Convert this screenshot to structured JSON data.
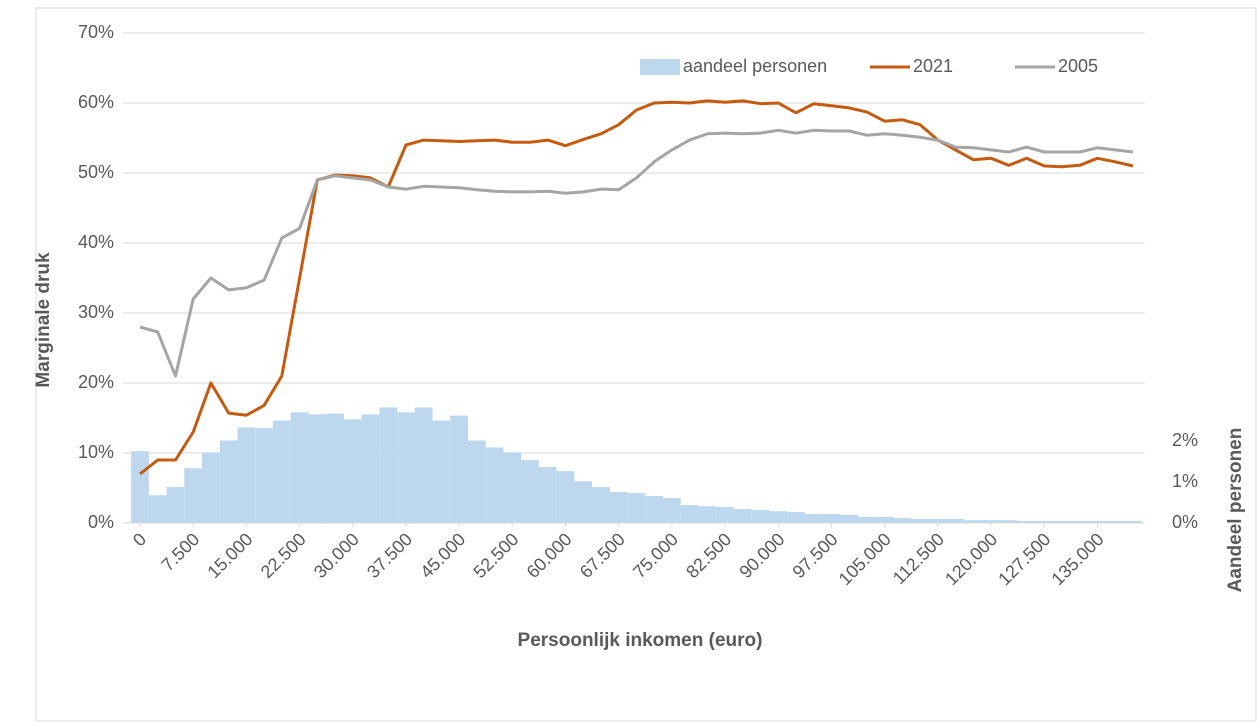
{
  "chart_data": {
    "type": "combo",
    "x_label": "Persoonlijk inkomen (euro)",
    "y_label": "Marginale druk",
    "y2_label": "Aandeel personen",
    "legend": "top",
    "grid": true,
    "x": [
      0,
      2500,
      5000,
      7500,
      10000,
      12500,
      15000,
      17500,
      20000,
      22500,
      25000,
      27500,
      30000,
      32500,
      35000,
      37500,
      40000,
      42500,
      45000,
      47500,
      50000,
      52500,
      55000,
      57500,
      60000,
      62500,
      65000,
      67500,
      70000,
      72500,
      75000,
      77500,
      80000,
      82500,
      85000,
      87500,
      90000,
      92500,
      95000,
      97500,
      100000,
      102500,
      105000,
      107500,
      110000,
      112500,
      115000,
      117500,
      120000,
      122500,
      125000,
      127500,
      130000,
      132500,
      135000,
      137500,
      140000
    ],
    "xlim": [
      0,
      141000
    ],
    "xticks": [
      0,
      {
        "value": 7500,
        "label": "7.500"
      },
      {
        "value": 15000,
        "label": "15.000"
      },
      {
        "value": 22500,
        "label": "22.500"
      },
      {
        "value": 30000,
        "label": "30.000"
      },
      {
        "value": 37500,
        "label": "37.500"
      },
      {
        "value": 45000,
        "label": "45.000"
      },
      {
        "value": 52500,
        "label": "52.500"
      },
      {
        "value": 60000,
        "label": "60.000"
      },
      {
        "value": 67500,
        "label": "67.500"
      },
      {
        "value": 75000,
        "label": "75.000"
      },
      {
        "value": 82500,
        "label": "82.500"
      },
      {
        "value": 90000,
        "label": "90.000"
      },
      {
        "value": 97500,
        "label": "97.500"
      },
      {
        "value": 105000,
        "label": "105.000"
      },
      {
        "value": 112500,
        "label": "112.500"
      },
      {
        "value": 120000,
        "label": "120.000"
      },
      {
        "value": 127500,
        "label": "127.500"
      },
      {
        "value": 135000,
        "label": "135.000"
      }
    ],
    "ylim": [
      0,
      70
    ],
    "yticks": [
      {
        "value": 0,
        "label": "0%"
      },
      {
        "value": 10,
        "label": "10%"
      },
      {
        "value": 20,
        "label": "20%"
      },
      {
        "value": 30,
        "label": "30%"
      },
      {
        "value": 40,
        "label": "40%"
      },
      {
        "value": 50,
        "label": "50%"
      },
      {
        "value": 60,
        "label": "60%"
      },
      {
        "value": 70,
        "label": "70%"
      }
    ],
    "y2lim": [
      0,
      12
    ],
    "y2ticks": [
      {
        "value": 0,
        "label": "0%"
      },
      {
        "value": 1,
        "label": "1%"
      },
      {
        "value": 2,
        "label": "2%"
      }
    ],
    "series": [
      {
        "name": "aandeel personen",
        "type": "bar",
        "axis": "y2",
        "color": "#bdd7ee",
        "values": [
          1.76,
          0.68,
          0.88,
          1.34,
          1.73,
          2.02,
          2.34,
          2.32,
          2.51,
          2.71,
          2.66,
          2.68,
          2.54,
          2.66,
          2.83,
          2.71,
          2.83,
          2.51,
          2.63,
          2.02,
          1.85,
          1.73,
          1.54,
          1.37,
          1.27,
          1.02,
          0.88,
          0.76,
          0.73,
          0.66,
          0.61,
          0.44,
          0.41,
          0.39,
          0.34,
          0.32,
          0.29,
          0.27,
          0.22,
          0.22,
          0.2,
          0.15,
          0.15,
          0.12,
          0.1,
          0.1,
          0.1,
          0.07,
          0.07,
          0.07,
          0.05,
          0.05,
          0.05,
          0.05,
          0.05,
          0.05,
          0.05
        ]
      },
      {
        "name": "2021",
        "type": "line",
        "color": "#c55a11",
        "values": [
          7,
          9,
          9,
          13,
          20,
          15.7,
          15.4,
          16.8,
          21,
          35,
          49,
          49.7,
          49.6,
          49.3,
          48,
          54,
          54.7,
          54.6,
          54.5,
          54.6,
          54.7,
          54.4,
          54.4,
          54.7,
          53.9,
          54.8,
          55.6,
          56.9,
          59,
          60,
          60.1,
          60,
          60.3,
          60.1,
          60.3,
          59.9,
          60,
          58.6,
          59.9,
          59.6,
          59.3,
          58.7,
          57.4,
          57.6,
          56.9,
          54.7,
          53.3,
          51.9,
          52.1,
          51.1,
          52.1,
          51,
          50.9,
          51.1,
          52.1,
          51.6,
          51
        ]
      },
      {
        "name": "2005",
        "type": "line",
        "color": "#a5a5a5",
        "values": [
          28,
          27.3,
          21,
          32,
          35,
          33.3,
          33.6,
          34.7,
          40.7,
          42.1,
          49,
          49.6,
          49.3,
          49,
          48,
          47.7,
          48.1,
          48,
          47.9,
          47.6,
          47.4,
          47.3,
          47.3,
          47.4,
          47.1,
          47.3,
          47.7,
          47.6,
          49.3,
          51.6,
          53.3,
          54.7,
          55.6,
          55.7,
          55.6,
          55.7,
          56.1,
          55.7,
          56.1,
          56,
          56,
          55.4,
          55.6,
          55.4,
          55.1,
          54.7,
          53.7,
          53.6,
          53.3,
          53,
          53.7,
          53,
          53,
          53,
          53.6,
          53.3,
          53
        ]
      }
    ]
  }
}
